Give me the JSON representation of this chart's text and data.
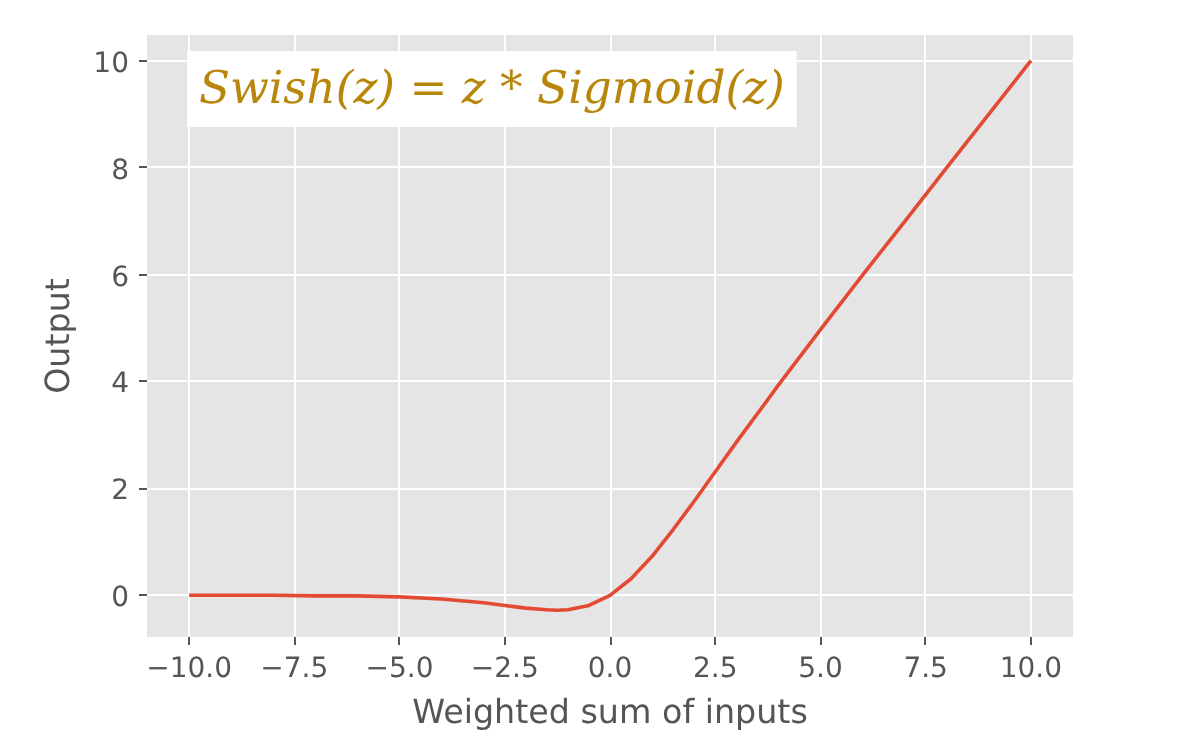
{
  "chart_data": {
    "type": "line",
    "xlabel": "Weighted sum of inputs",
    "ylabel": "Output",
    "annotations": [
      "Swish(z) = z * Sigmoid(z)"
    ],
    "x": [
      -10,
      -9,
      -8,
      -7,
      -6,
      -5,
      -4,
      -3,
      -2.5,
      -2,
      -1.5,
      -1.25,
      -1,
      -0.5,
      0,
      0.5,
      1,
      1.5,
      2,
      2.5,
      3,
      4,
      5,
      6,
      7,
      8,
      10
    ],
    "series": [
      {
        "color": "#e24a33",
        "values": [
          0,
          0,
          0,
          -0.01,
          -0.01,
          -0.03,
          -0.07,
          -0.14,
          -0.19,
          -0.24,
          -0.27,
          -0.28,
          -0.27,
          -0.19,
          0,
          0.31,
          0.73,
          1.23,
          1.76,
          2.31,
          2.86,
          3.93,
          4.97,
          5.99,
          6.99,
          8,
          10
        ]
      }
    ],
    "xlim": [
      -11,
      11
    ],
    "ylim": [
      -0.78,
      10.48
    ],
    "xticks": [
      {
        "value": -10,
        "label": "−10.0"
      },
      {
        "value": -7.5,
        "label": "−7.5"
      },
      {
        "value": -5,
        "label": "−5.0"
      },
      {
        "value": -2.5,
        "label": "−2.5"
      },
      {
        "value": 0,
        "label": "0.0"
      },
      {
        "value": 2.5,
        "label": "2.5"
      },
      {
        "value": 5,
        "label": "5.0"
      },
      {
        "value": 7.5,
        "label": "7.5"
      },
      {
        "value": 10,
        "label": "10.0"
      }
    ],
    "yticks": [
      0,
      2,
      4,
      6,
      8,
      10
    ],
    "grid": true,
    "marker": "none",
    "line_style": "solid"
  }
}
